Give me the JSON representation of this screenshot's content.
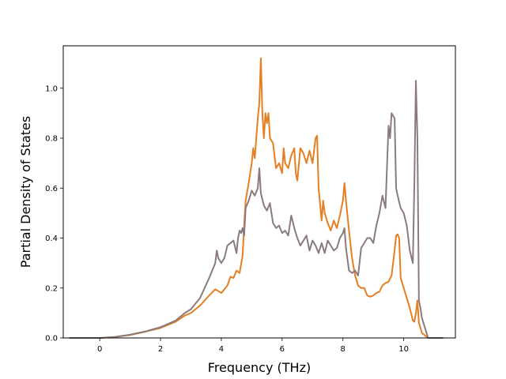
{
  "chart_data": {
    "type": "line",
    "xlabel": "Frequency (THz)",
    "ylabel": "Partial Density of States",
    "xlim": [
      -1.2,
      11.7
    ],
    "ylim": [
      0.0,
      1.17
    ],
    "xticks": [
      0,
      2,
      4,
      6,
      8,
      10
    ],
    "xtick_labels": [
      "0",
      "2",
      "4",
      "6",
      "8",
      "10"
    ],
    "yticks": [
      0.0,
      0.2,
      0.4,
      0.6,
      0.8,
      1.0
    ],
    "ytick_labels": [
      "0.0",
      "0.2",
      "0.4",
      "0.6",
      "0.8",
      "1.0"
    ],
    "grid": false,
    "series": [
      {
        "color": "#e67e22",
        "points": [
          [
            -1.0,
            0.0
          ],
          [
            0.0,
            0.0
          ],
          [
            0.5,
            0.004
          ],
          [
            1.0,
            0.012
          ],
          [
            1.5,
            0.025
          ],
          [
            2.0,
            0.04
          ],
          [
            2.5,
            0.065
          ],
          [
            2.8,
            0.09
          ],
          [
            3.0,
            0.1
          ],
          [
            3.3,
            0.13
          ],
          [
            3.6,
            0.17
          ],
          [
            3.8,
            0.195
          ],
          [
            4.0,
            0.18
          ],
          [
            4.2,
            0.21
          ],
          [
            4.3,
            0.245
          ],
          [
            4.4,
            0.24
          ],
          [
            4.5,
            0.27
          ],
          [
            4.6,
            0.26
          ],
          [
            4.7,
            0.33
          ],
          [
            4.75,
            0.45
          ],
          [
            4.8,
            0.55
          ],
          [
            4.9,
            0.62
          ],
          [
            5.0,
            0.7
          ],
          [
            5.05,
            0.76
          ],
          [
            5.1,
            0.72
          ],
          [
            5.2,
            0.88
          ],
          [
            5.25,
            0.94
          ],
          [
            5.3,
            1.12
          ],
          [
            5.35,
            0.9
          ],
          [
            5.4,
            0.8
          ],
          [
            5.45,
            0.9
          ],
          [
            5.5,
            0.86
          ],
          [
            5.55,
            0.9
          ],
          [
            5.6,
            0.8
          ],
          [
            5.7,
            0.78
          ],
          [
            5.8,
            0.68
          ],
          [
            5.9,
            0.7
          ],
          [
            6.0,
            0.66
          ],
          [
            6.05,
            0.76
          ],
          [
            6.1,
            0.7
          ],
          [
            6.2,
            0.68
          ],
          [
            6.3,
            0.73
          ],
          [
            6.4,
            0.76
          ],
          [
            6.45,
            0.66
          ],
          [
            6.5,
            0.63
          ],
          [
            6.6,
            0.76
          ],
          [
            6.7,
            0.74
          ],
          [
            6.8,
            0.7
          ],
          [
            6.9,
            0.75
          ],
          [
            7.0,
            0.7
          ],
          [
            7.1,
            0.8
          ],
          [
            7.15,
            0.81
          ],
          [
            7.2,
            0.6
          ],
          [
            7.3,
            0.47
          ],
          [
            7.35,
            0.55
          ],
          [
            7.4,
            0.5
          ],
          [
            7.5,
            0.46
          ],
          [
            7.6,
            0.43
          ],
          [
            7.7,
            0.47
          ],
          [
            7.8,
            0.44
          ],
          [
            7.9,
            0.49
          ],
          [
            8.0,
            0.55
          ],
          [
            8.05,
            0.62
          ],
          [
            8.1,
            0.55
          ],
          [
            8.2,
            0.43
          ],
          [
            8.3,
            0.32
          ],
          [
            8.4,
            0.25
          ],
          [
            8.5,
            0.21
          ],
          [
            8.6,
            0.2
          ],
          [
            8.7,
            0.2
          ],
          [
            8.8,
            0.17
          ],
          [
            8.9,
            0.165
          ],
          [
            9.0,
            0.17
          ],
          [
            9.1,
            0.18
          ],
          [
            9.2,
            0.185
          ],
          [
            9.3,
            0.21
          ],
          [
            9.4,
            0.22
          ],
          [
            9.5,
            0.225
          ],
          [
            9.6,
            0.25
          ],
          [
            9.7,
            0.35
          ],
          [
            9.75,
            0.41
          ],
          [
            9.8,
            0.415
          ],
          [
            9.85,
            0.4
          ],
          [
            9.9,
            0.24
          ],
          [
            10.0,
            0.2
          ],
          [
            10.1,
            0.16
          ],
          [
            10.2,
            0.12
          ],
          [
            10.3,
            0.07
          ],
          [
            10.35,
            0.065
          ],
          [
            10.4,
            0.1
          ],
          [
            10.45,
            0.15
          ],
          [
            10.5,
            0.06
          ],
          [
            10.6,
            0.02
          ],
          [
            10.7,
            0.01
          ],
          [
            10.8,
            0.0
          ],
          [
            11.3,
            0.0
          ]
        ]
      },
      {
        "color": "#8b7b7e",
        "points": [
          [
            -1.0,
            0.0
          ],
          [
            0.0,
            0.0
          ],
          [
            0.5,
            0.004
          ],
          [
            1.0,
            0.013
          ],
          [
            1.5,
            0.026
          ],
          [
            2.0,
            0.043
          ],
          [
            2.5,
            0.07
          ],
          [
            2.8,
            0.1
          ],
          [
            3.0,
            0.115
          ],
          [
            3.3,
            0.16
          ],
          [
            3.6,
            0.24
          ],
          [
            3.8,
            0.3
          ],
          [
            3.85,
            0.35
          ],
          [
            3.9,
            0.32
          ],
          [
            4.0,
            0.3
          ],
          [
            4.1,
            0.32
          ],
          [
            4.2,
            0.37
          ],
          [
            4.3,
            0.38
          ],
          [
            4.4,
            0.39
          ],
          [
            4.5,
            0.34
          ],
          [
            4.55,
            0.4
          ],
          [
            4.6,
            0.43
          ],
          [
            4.65,
            0.42
          ],
          [
            4.7,
            0.44
          ],
          [
            4.75,
            0.41
          ],
          [
            4.8,
            0.52
          ],
          [
            4.9,
            0.55
          ],
          [
            5.0,
            0.59
          ],
          [
            5.1,
            0.57
          ],
          [
            5.2,
            0.6
          ],
          [
            5.25,
            0.68
          ],
          [
            5.3,
            0.58
          ],
          [
            5.4,
            0.53
          ],
          [
            5.5,
            0.51
          ],
          [
            5.6,
            0.54
          ],
          [
            5.7,
            0.46
          ],
          [
            5.8,
            0.44
          ],
          [
            5.9,
            0.45
          ],
          [
            6.0,
            0.42
          ],
          [
            6.1,
            0.43
          ],
          [
            6.2,
            0.41
          ],
          [
            6.3,
            0.49
          ],
          [
            6.4,
            0.44
          ],
          [
            6.5,
            0.4
          ],
          [
            6.6,
            0.37
          ],
          [
            6.7,
            0.39
          ],
          [
            6.8,
            0.41
          ],
          [
            6.9,
            0.35
          ],
          [
            7.0,
            0.39
          ],
          [
            7.1,
            0.37
          ],
          [
            7.2,
            0.34
          ],
          [
            7.3,
            0.38
          ],
          [
            7.4,
            0.34
          ],
          [
            7.5,
            0.39
          ],
          [
            7.6,
            0.37
          ],
          [
            7.7,
            0.35
          ],
          [
            7.8,
            0.36
          ],
          [
            7.9,
            0.4
          ],
          [
            8.0,
            0.42
          ],
          [
            8.05,
            0.44
          ],
          [
            8.1,
            0.36
          ],
          [
            8.2,
            0.27
          ],
          [
            8.3,
            0.26
          ],
          [
            8.4,
            0.27
          ],
          [
            8.5,
            0.25
          ],
          [
            8.6,
            0.36
          ],
          [
            8.7,
            0.38
          ],
          [
            8.8,
            0.4
          ],
          [
            8.9,
            0.4
          ],
          [
            9.0,
            0.38
          ],
          [
            9.1,
            0.45
          ],
          [
            9.2,
            0.5
          ],
          [
            9.3,
            0.57
          ],
          [
            9.4,
            0.52
          ],
          [
            9.5,
            0.85
          ],
          [
            9.55,
            0.8
          ],
          [
            9.6,
            0.9
          ],
          [
            9.7,
            0.88
          ],
          [
            9.75,
            0.6
          ],
          [
            9.8,
            0.57
          ],
          [
            9.9,
            0.52
          ],
          [
            10.0,
            0.5
          ],
          [
            10.1,
            0.45
          ],
          [
            10.2,
            0.35
          ],
          [
            10.3,
            0.3
          ],
          [
            10.35,
            0.62
          ],
          [
            10.4,
            1.03
          ],
          [
            10.45,
            0.8
          ],
          [
            10.5,
            0.15
          ],
          [
            10.55,
            0.12
          ],
          [
            10.6,
            0.08
          ],
          [
            10.7,
            0.04
          ],
          [
            10.8,
            0.0
          ],
          [
            11.3,
            0.0
          ]
        ]
      }
    ]
  }
}
